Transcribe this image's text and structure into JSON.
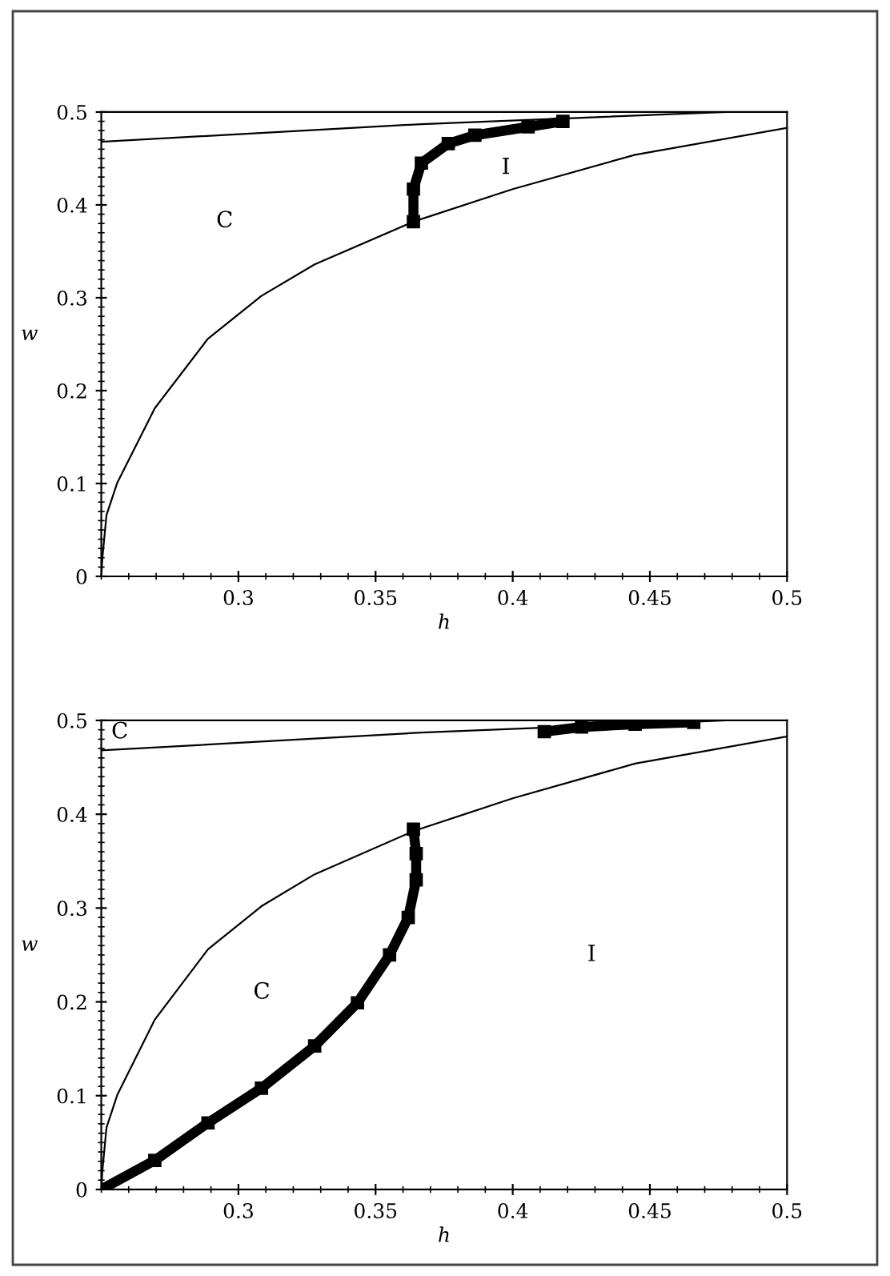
{
  "chart_data": [
    {
      "type": "line",
      "xlabel": "h",
      "ylabel": "w",
      "xlim": [
        0.25,
        0.5
      ],
      "ylim": [
        0,
        0.5
      ],
      "xticks": [
        0.3,
        0.35,
        0.4,
        0.45,
        0.5
      ],
      "yticks": [
        0,
        0.1,
        0.2,
        0.3,
        0.4,
        0.5
      ],
      "grid": false,
      "legend": false,
      "line_style": "solid",
      "series": [
        {
          "color": "#000000",
          "x": [
            0.25,
            0.2504,
            0.2519,
            0.2558,
            0.2695,
            0.2889,
            0.3084,
            0.3278,
            0.3638,
            0.4,
            0.4446,
            0.5
          ],
          "values": [
            0,
            0.02,
            0.066,
            0.1006,
            0.181,
            0.256,
            0.302,
            0.336,
            0.382,
            0.417,
            0.454,
            0.483
          ]
        },
        {
          "color": "#000000",
          "x": [
            0.25,
            0.3667,
            0.4776
          ],
          "values": [
            0.468,
            0.487,
            0.5
          ]
        },
        {
          "color": "#000000",
          "marker": "square",
          "x": [
            0.3638,
            0.3638,
            0.3667,
            0.3765,
            0.3862,
            0.4056,
            0.4183
          ],
          "values": [
            0.382,
            0.417,
            0.445,
            0.466,
            0.475,
            0.484,
            0.49
          ]
        }
      ],
      "annotations": [
        "C",
        "I"
      ]
    },
    {
      "type": "line",
      "xlabel": "h",
      "ylabel": "w",
      "xlim": [
        0.25,
        0.5
      ],
      "ylim": [
        0,
        0.5
      ],
      "xticks": [
        0.3,
        0.35,
        0.4,
        0.45,
        0.5
      ],
      "yticks": [
        0,
        0.1,
        0.2,
        0.3,
        0.4,
        0.5
      ],
      "grid": false,
      "legend": false,
      "line_style": "solid",
      "series": [
        {
          "color": "#000000",
          "x": [
            0.25,
            0.2504,
            0.2519,
            0.2558,
            0.2695,
            0.2889,
            0.3084,
            0.3278,
            0.3638,
            0.4,
            0.4446,
            0.5
          ],
          "values": [
            0,
            0.02,
            0.066,
            0.1006,
            0.181,
            0.256,
            0.302,
            0.336,
            0.382,
            0.417,
            0.454,
            0.483
          ]
        },
        {
          "color": "#000000",
          "x": [
            0.25,
            0.3667,
            0.4776
          ],
          "values": [
            0.468,
            0.487,
            0.5
          ]
        },
        {
          "color": "#000000",
          "marker": "square",
          "x": [
            0.25,
            0.2695,
            0.2889,
            0.3084,
            0.3278,
            0.3434,
            0.3551,
            0.3619,
            0.3648,
            0.3648,
            0.3638
          ],
          "values": [
            0,
            0.031,
            0.071,
            0.108,
            0.153,
            0.199,
            0.25,
            0.29,
            0.33,
            0.358,
            0.384
          ]
        },
        {
          "color": "#000000",
          "marker": "square",
          "x": [
            0.4115,
            0.4251,
            0.4446,
            0.466
          ],
          "values": [
            0.488,
            0.493,
            0.496,
            0.498
          ]
        }
      ],
      "annotations": [
        "C",
        "C",
        "I"
      ]
    }
  ]
}
